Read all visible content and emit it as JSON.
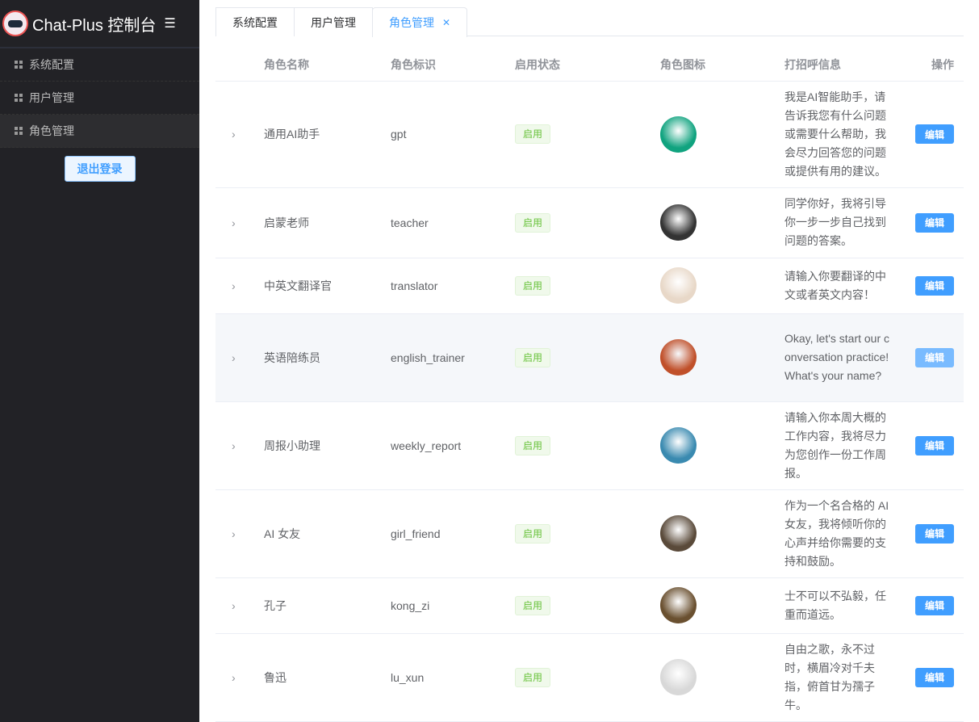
{
  "sidebar": {
    "title": "Chat-Plus 控制台",
    "items": [
      {
        "label": "系统配置"
      },
      {
        "label": "用户管理"
      },
      {
        "label": "角色管理"
      }
    ],
    "logout": "退出登录"
  },
  "tabs": [
    {
      "label": "系统配置"
    },
    {
      "label": "用户管理"
    },
    {
      "label": "角色管理",
      "active": true
    }
  ],
  "table": {
    "headers": [
      "角色名称",
      "角色标识",
      "启用状态",
      "角色图标",
      "打招呼信息",
      "操作"
    ],
    "rows": [
      {
        "name": "通用AI助手",
        "key": "gpt",
        "status": "启用",
        "avatar_color": "#10a37f",
        "greeting": "我是AI智能助手，请告诉我您有什么问题或需要什么帮助，我会尽力回答您的问题或提供有用的建议。",
        "action": "编辑"
      },
      {
        "name": "启蒙老师",
        "key": "teacher",
        "status": "启用",
        "avatar_color": "#333333",
        "greeting": "同学你好，我将引导你一步一步自己找到问题的答案。",
        "action": "编辑"
      },
      {
        "name": "中英文翻译官",
        "key": "translator",
        "status": "启用",
        "avatar_color": "#e8d8c8",
        "greeting": "请输入你要翻译的中文或者英文内容！",
        "action": "编辑"
      },
      {
        "name": "英语陪练员",
        "key": "english_trainer",
        "status": "启用",
        "avatar_color": "#c0502a",
        "greeting": "Okay, let's start our conversation practice! What's your name?",
        "action": "编辑"
      },
      {
        "name": "周报小助理",
        "key": "weekly_report",
        "status": "启用",
        "avatar_color": "#3a8ab0",
        "greeting": "请输入你本周大概的工作内容，我将尽力为您创作一份工作周报。",
        "action": "编辑"
      },
      {
        "name": "AI 女友",
        "key": "girl_friend",
        "status": "启用",
        "avatar_color": "#5a4a3a",
        "greeting": "作为一个名合格的 AI 女友，我将倾听你的心声并给你需要的支持和鼓励。",
        "action": "编辑"
      },
      {
        "name": "孔子",
        "key": "kong_zi",
        "status": "启用",
        "avatar_color": "#6a5030",
        "greeting": "士不可以不弘毅，任重而道远。",
        "action": "编辑"
      },
      {
        "name": "鲁迅",
        "key": "lu_xun",
        "status": "启用",
        "avatar_color": "#d8d8d8",
        "greeting": "自由之歌，永不过时，横眉冷对千夫指，俯首甘为孺子牛。",
        "action": "编辑"
      }
    ]
  },
  "colors": {
    "primary": "#409eff",
    "success": "#67c23a",
    "sidebar_bg": "#222226"
  }
}
